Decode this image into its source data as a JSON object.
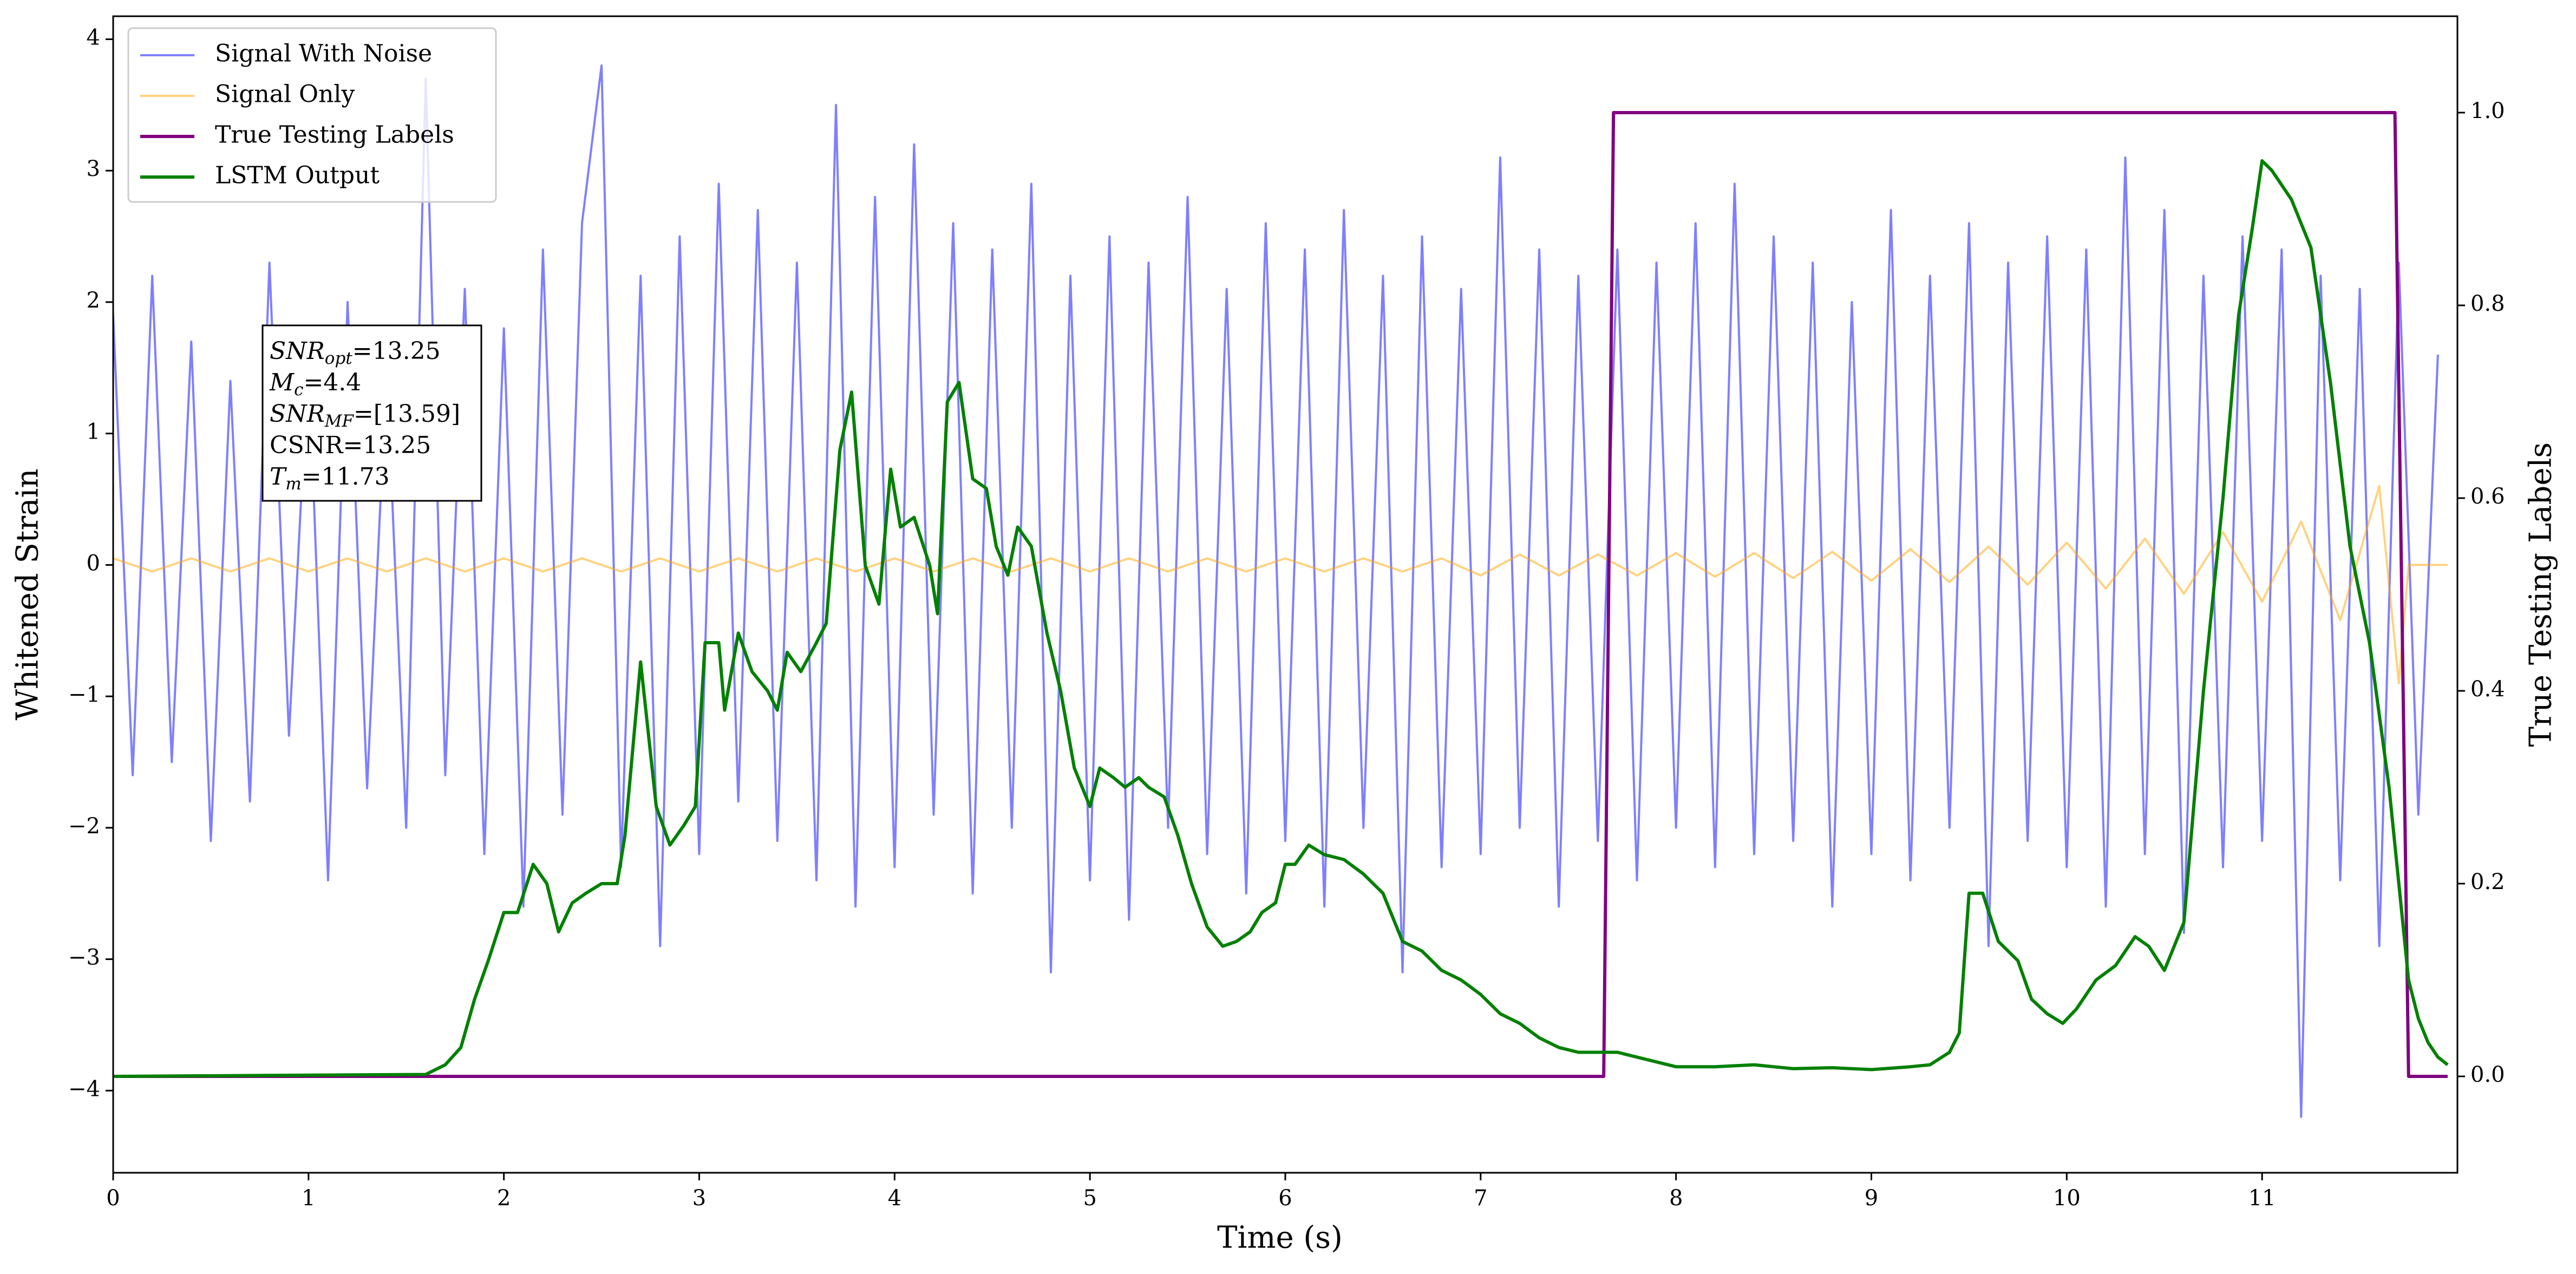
{
  "chart_data": {
    "type": "line",
    "xlabel": "Time (s)",
    "ylabel": "Whitened Strain",
    "y2label": "True Testing Labels",
    "xlim": [
      0,
      12
    ],
    "ylim": [
      -4.625,
      4.175
    ],
    "y2lim": [
      -0.1,
      1.1
    ],
    "xticks": [
      0,
      1,
      2,
      3,
      4,
      5,
      6,
      7,
      8,
      9,
      10,
      11
    ],
    "yticks": [
      {
        "value": -4,
        "label": "−4"
      },
      {
        "value": -3,
        "label": "−3"
      },
      {
        "value": -2,
        "label": "−2"
      },
      {
        "value": -1,
        "label": "−1"
      },
      0,
      1,
      2,
      3,
      4
    ],
    "y2ticks": [
      {
        "value": 0,
        "label": "0.0"
      },
      {
        "value": 0.2,
        "label": "0.2"
      },
      {
        "value": 0.4,
        "label": "0.4"
      },
      {
        "value": 0.6,
        "label": "0.6"
      },
      {
        "value": 0.8,
        "label": "0.8"
      },
      {
        "value": 1,
        "label": "1.0"
      }
    ],
    "legend": "upper left",
    "grid": false,
    "series": [
      {
        "name": "Signal With Noise",
        "color": "#0000ff",
        "x": [
          0,
          0.1,
          0.2,
          0.3,
          0.4,
          0.5,
          0.6,
          0.7,
          0.8,
          0.9,
          1,
          1.1,
          1.2,
          1.3,
          1.4,
          1.5,
          1.6,
          1.7,
          1.8,
          1.9,
          2,
          2.1,
          2.2,
          2.3,
          2.4,
          2.5,
          2.6,
          2.7,
          2.8,
          2.9,
          3,
          3.1,
          3.2,
          3.3,
          3.4,
          3.5,
          3.6,
          3.7,
          3.8,
          3.9,
          4,
          4.1,
          4.2,
          4.3,
          4.4,
          4.5,
          4.6,
          4.7,
          4.8,
          4.9,
          5,
          5.1,
          5.2,
          5.3,
          5.4,
          5.5,
          5.6,
          5.7,
          5.8,
          5.9,
          6,
          6.1,
          6.2,
          6.3,
          6.4,
          6.5,
          6.6,
          6.7,
          6.8,
          6.9,
          7,
          7.1,
          7.2,
          7.3,
          7.4,
          7.5,
          7.6,
          7.7,
          7.8,
          7.9,
          8,
          8.1,
          8.2,
          8.3,
          8.4,
          8.5,
          8.6,
          8.7,
          8.8,
          8.9,
          9,
          9.1,
          9.2,
          9.3,
          9.4,
          9.5,
          9.6,
          9.7,
          9.8,
          9.9,
          10,
          10.1,
          10.2,
          10.3,
          10.4,
          10.5,
          10.6,
          10.7,
          10.8,
          10.9,
          11,
          11.1,
          11.2,
          11.3,
          11.4,
          11.5,
          11.6,
          11.7,
          11.8,
          11.9
        ],
        "values": [
          1.9,
          -1.6,
          2.2,
          -1.5,
          1.7,
          -2.1,
          1.4,
          -1.8,
          2.3,
          -1.3,
          1.6,
          -2.4,
          2.0,
          -1.7,
          1.5,
          -2.0,
          3.7,
          -1.6,
          2.1,
          -2.2,
          1.8,
          -2.6,
          2.4,
          -1.9,
          2.6,
          3.8,
          -2.3,
          2.2,
          -2.9,
          2.5,
          -2.2,
          2.9,
          -1.8,
          2.7,
          -2.1,
          2.3,
          -2.4,
          3.5,
          -2.6,
          2.8,
          -2.3,
          3.2,
          -1.9,
          2.6,
          -2.5,
          2.4,
          -2.0,
          2.9,
          -3.1,
          2.2,
          -2.4,
          2.5,
          -2.7,
          2.3,
          -2.0,
          2.8,
          -2.2,
          2.1,
          -2.5,
          2.6,
          -2.1,
          2.4,
          -2.6,
          2.7,
          -2.0,
          2.2,
          -3.1,
          2.5,
          -2.3,
          2.1,
          -2.2,
          3.1,
          -2.0,
          2.4,
          -2.6,
          2.2,
          -2.1,
          2.4,
          -2.4,
          2.3,
          -2.0,
          2.6,
          -2.3,
          2.9,
          -2.2,
          2.5,
          -2.1,
          2.3,
          -2.6,
          2.0,
          -2.2,
          2.7,
          -2.4,
          2.2,
          -2.0,
          2.6,
          -2.9,
          2.3,
          -2.1,
          2.5,
          -2.3,
          2.4,
          -2.6,
          3.1,
          -2.2,
          2.7,
          -2.8,
          2.2,
          -2.3,
          2.5,
          -2.1,
          2.4,
          -4.2,
          2.2,
          -2.4,
          2.1,
          -2.9,
          2.3,
          -1.9,
          1.6
        ]
      },
      {
        "name": "Signal Only",
        "color": "#ffa500",
        "x": [
          0,
          0.2,
          0.4,
          0.6,
          0.8,
          1,
          1.2,
          1.4,
          1.6,
          1.8,
          2,
          2.2,
          2.4,
          2.6,
          2.8,
          3,
          3.2,
          3.4,
          3.6,
          3.8,
          4,
          4.2,
          4.4,
          4.6,
          4.8,
          5,
          5.2,
          5.4,
          5.6,
          5.8,
          6,
          6.2,
          6.4,
          6.6,
          6.8,
          7,
          7.2,
          7.4,
          7.6,
          7.8,
          8,
          8.2,
          8.4,
          8.6,
          8.8,
          9,
          9.2,
          9.4,
          9.6,
          9.8,
          10,
          10.2,
          10.4,
          10.6,
          10.8,
          11,
          11.2,
          11.4,
          11.6,
          11.7,
          11.75,
          11.95
        ],
        "values": [
          0.05,
          -0.05,
          0.05,
          -0.05,
          0.05,
          -0.05,
          0.05,
          -0.05,
          0.05,
          -0.05,
          0.05,
          -0.05,
          0.05,
          -0.05,
          0.05,
          -0.05,
          0.05,
          -0.05,
          0.05,
          -0.05,
          0.05,
          -0.05,
          0.05,
          -0.05,
          0.05,
          -0.05,
          0.05,
          -0.05,
          0.05,
          -0.05,
          0.05,
          -0.05,
          0.05,
          -0.05,
          0.05,
          -0.08,
          0.08,
          -0.08,
          0.08,
          -0.08,
          0.09,
          -0.09,
          0.09,
          -0.1,
          0.1,
          -0.12,
          0.12,
          -0.13,
          0.14,
          -0.15,
          0.17,
          -0.18,
          0.2,
          -0.22,
          0.25,
          -0.28,
          0.33,
          -0.42,
          0.6,
          -0.9,
          0,
          0
        ]
      },
      {
        "name": "True Testing Labels",
        "color": "#800080",
        "axis": "y2",
        "x": [
          0,
          7.63,
          7.68,
          11.68,
          11.75,
          11.95
        ],
        "values": [
          0,
          0,
          1,
          1,
          0,
          0
        ]
      },
      {
        "name": "LSTM Output",
        "color": "#008000",
        "axis": "y2",
        "x": [
          0,
          1.6,
          1.7,
          1.78,
          1.85,
          1.92,
          2,
          2.07,
          2.15,
          2.22,
          2.28,
          2.35,
          2.42,
          2.5,
          2.58,
          2.62,
          2.7,
          2.78,
          2.85,
          2.92,
          2.98,
          3.03,
          3.1,
          3.13,
          3.2,
          3.27,
          3.35,
          3.4,
          3.45,
          3.52,
          3.6,
          3.65,
          3.72,
          3.78,
          3.85,
          3.92,
          3.98,
          4.03,
          4.1,
          4.18,
          4.22,
          4.27,
          4.33,
          4.4,
          4.47,
          4.52,
          4.58,
          4.63,
          4.7,
          4.78,
          4.85,
          4.92,
          5,
          5.05,
          5.12,
          5.18,
          5.25,
          5.3,
          5.38,
          5.45,
          5.52,
          5.6,
          5.68,
          5.75,
          5.82,
          5.88,
          5.95,
          6,
          6.05,
          6.12,
          6.2,
          6.3,
          6.4,
          6.5,
          6.6,
          6.7,
          6.8,
          6.9,
          7,
          7.1,
          7.2,
          7.3,
          7.4,
          7.5,
          7.6,
          7.7,
          7.8,
          7.9,
          8,
          8.2,
          8.4,
          8.6,
          8.8,
          9,
          9.2,
          9.3,
          9.4,
          9.45,
          9.5,
          9.57,
          9.65,
          9.75,
          9.82,
          9.9,
          9.98,
          10.05,
          10.15,
          10.25,
          10.35,
          10.42,
          10.5,
          10.6,
          10.7,
          10.8,
          10.88,
          10.95,
          11,
          11.05,
          11.15,
          11.25,
          11.35,
          11.45,
          11.55,
          11.65,
          11.75,
          11.8,
          11.85,
          11.9,
          11.95
        ],
        "values": [
          0,
          0.002,
          0.012,
          0.03,
          0.08,
          0.12,
          0.17,
          0.17,
          0.22,
          0.2,
          0.15,
          0.18,
          0.19,
          0.2,
          0.2,
          0.25,
          0.43,
          0.28,
          0.24,
          0.26,
          0.28,
          0.45,
          0.45,
          0.38,
          0.46,
          0.42,
          0.4,
          0.38,
          0.44,
          0.42,
          0.45,
          0.47,
          0.65,
          0.71,
          0.53,
          0.49,
          0.63,
          0.57,
          0.58,
          0.53,
          0.48,
          0.7,
          0.72,
          0.62,
          0.61,
          0.55,
          0.52,
          0.57,
          0.55,
          0.46,
          0.4,
          0.32,
          0.28,
          0.32,
          0.31,
          0.3,
          0.31,
          0.3,
          0.29,
          0.25,
          0.2,
          0.155,
          0.135,
          0.14,
          0.15,
          0.17,
          0.18,
          0.22,
          0.22,
          0.24,
          0.23,
          0.225,
          0.21,
          0.19,
          0.14,
          0.13,
          0.11,
          0.1,
          0.085,
          0.065,
          0.055,
          0.04,
          0.03,
          0.025,
          0.025,
          0.025,
          0.02,
          0.015,
          0.01,
          0.01,
          0.012,
          0.008,
          0.009,
          0.007,
          0.01,
          0.012,
          0.025,
          0.045,
          0.19,
          0.19,
          0.14,
          0.12,
          0.08,
          0.065,
          0.055,
          0.07,
          0.1,
          0.115,
          0.145,
          0.135,
          0.11,
          0.16,
          0.4,
          0.6,
          0.79,
          0.88,
          0.95,
          0.94,
          0.91,
          0.86,
          0.72,
          0.55,
          0.45,
          0.3,
          0.1,
          0.06,
          0.035,
          0.02,
          0.012
        ]
      }
    ],
    "annotation": [
      {
        "main": "SNR",
        "sub": "opt",
        "rest": "=13.25"
      },
      {
        "main": "M",
        "sub": "c",
        "rest": "=4.4"
      },
      {
        "main": "SNR",
        "sub": "MF",
        "rest": "=[13.59]"
      },
      {
        "main": "CSNR",
        "rest": "=13.25"
      },
      {
        "main": "T",
        "sub": "m",
        "rest": "=11.73"
      }
    ]
  }
}
